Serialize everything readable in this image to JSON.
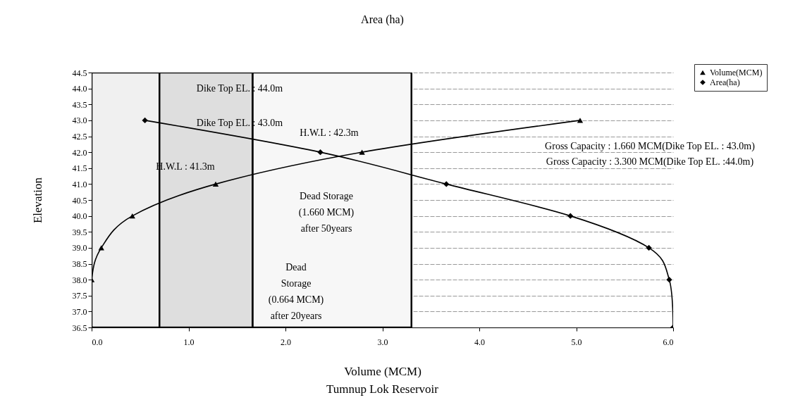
{
  "chart_data": {
    "type": "line",
    "title": "Area (ha)",
    "xlabel": "Volume (MCM)",
    "ylabel": "Elevation",
    "xlim": [
      0,
      6.0
    ],
    "ylim": [
      36.5,
      44.5
    ],
    "xticks": [
      {
        "value": 0,
        "label": "0.0"
      },
      {
        "value": 1,
        "label": "1.0"
      },
      {
        "value": 2,
        "label": "2.0"
      },
      {
        "value": 3,
        "label": "3.0"
      },
      {
        "value": 4,
        "label": "4.0"
      },
      {
        "value": 5,
        "label": "5.0"
      },
      {
        "value": 6,
        "label": "6.0"
      }
    ],
    "yticks": [
      36.5,
      {
        "value": 37,
        "label": "37.0"
      },
      37.5,
      {
        "value": 38,
        "label": "38.0"
      },
      38.5,
      {
        "value": 39,
        "label": "39.0"
      },
      39.5,
      {
        "value": 40,
        "label": "40.0"
      },
      40.5,
      {
        "value": 41,
        "label": "41.0"
      },
      41.5,
      {
        "value": 42,
        "label": "42.0"
      },
      42.5,
      {
        "value": 43,
        "label": "43.0"
      },
      43.5,
      {
        "value": 44,
        "label": "44.0"
      },
      44.5
    ],
    "grid": "y",
    "legend": "top right",
    "series": [
      {
        "name": "Volume(MCM)",
        "color": "#000000",
        "marker": "triangle",
        "x": [
          0,
          0,
          0.1,
          0.42,
          1.28,
          2.79,
          5.04
        ],
        "values": [
          36.5,
          38.0,
          39.0,
          40.0,
          41.0,
          42.0,
          43.0
        ]
      },
      {
        "name": "Area(ha)",
        "color": "#000000",
        "marker": "diamond",
        "x": [
          0.55,
          2.36,
          3.66,
          4.94,
          5.75,
          5.96,
          6.0
        ],
        "values": [
          43.0,
          42.0,
          41.0,
          40.0,
          39.0,
          38.0,
          36.5
        ]
      }
    ],
    "bands": [
      {
        "axis": "x",
        "from": 0,
        "to": 3.3,
        "color": "#f7f7f7"
      },
      {
        "axis": "x",
        "from": 0,
        "to": 1.66,
        "color": "#f0f0f0"
      },
      {
        "axis": "x",
        "from": 0.7,
        "to": 1.66,
        "color": "#dedede"
      }
    ],
    "annotations": [
      "Dike Top EL. : 44.0m",
      "Dike Top EL. : 43.0m",
      "H.W.L : 42.3m",
      "H.W.L : 41.3m",
      "Dead Storage\n(1.660 MCM)\nafter 50years",
      "Dead\nStorage\n(0.664 MCM)\nafter 20years",
      "Gross Capacity : 1.660 MCM(Dike Top EL. : 43.0m)",
      "Gross Capacity : 3.300 MCM(Dike Top EL. :44.0m)",
      "Tumnup Lok Reservoir"
    ]
  }
}
